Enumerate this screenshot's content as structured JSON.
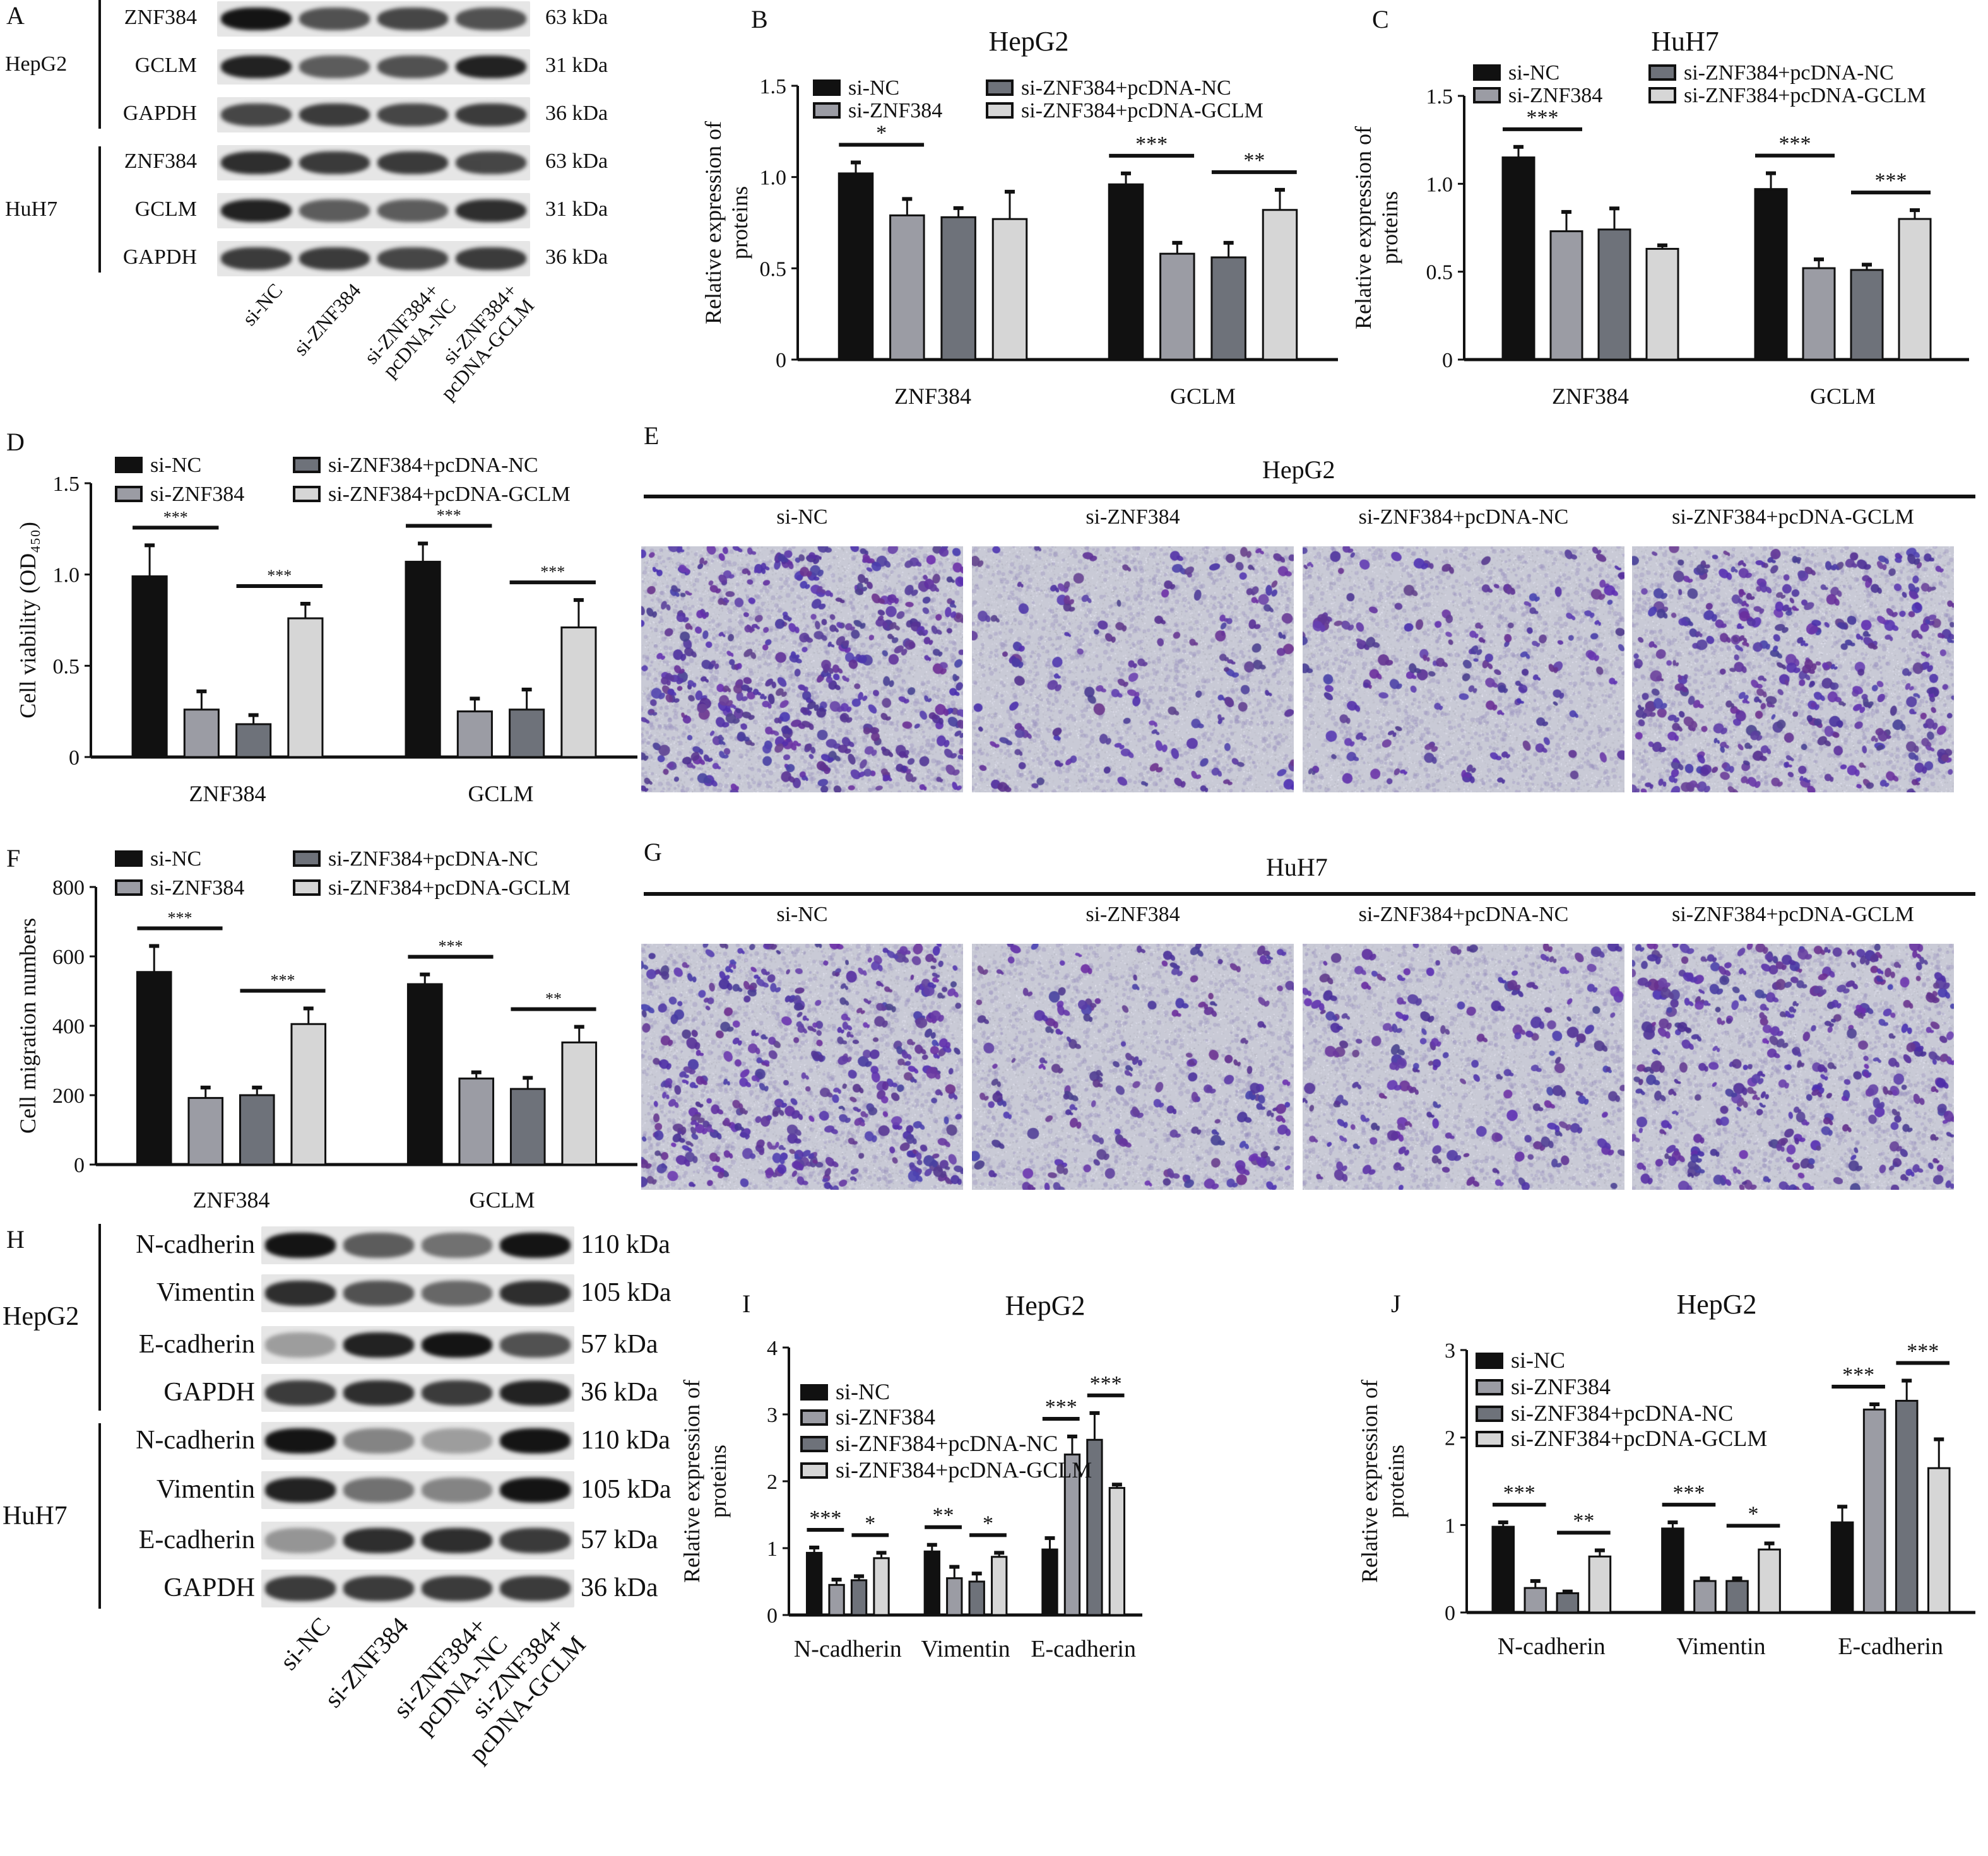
{
  "groups": [
    "si-NC",
    "si-ZNF384",
    "si-ZNF384+pcDNA-NC",
    "si-ZNF384+pcDNA-GCLM"
  ],
  "colors": {
    "si-NC": "#111111",
    "si-ZNF384": "#9b9ca4",
    "si-ZNF384+pcDNA-NC": "#6e727a",
    "si-ZNF384+pcDNA-GCLM": "#d6d6d6"
  },
  "panel_A": {
    "letter": "A",
    "cell_lines": [
      "HepG2",
      "HuH7"
    ],
    "rows": [
      {
        "protein": "ZNF384",
        "kda": "63 kDa"
      },
      {
        "protein": "GCLM",
        "kda": "31 kDa"
      },
      {
        "protein": "GAPDH",
        "kda": "36 kDa"
      },
      {
        "protein": "ZNF384",
        "kda": "63 kDa"
      },
      {
        "protein": "GCLM",
        "kda": "31 kDa"
      },
      {
        "protein": "GAPDH",
        "kda": "36 kDa"
      }
    ],
    "lanes": [
      [
        "si-NC",
        ""
      ],
      [
        "si-ZNF384",
        ""
      ],
      [
        "si-ZNF384+",
        "pcDNA-NC"
      ],
      [
        "si-ZNF384+",
        "pcDNA-GCLM"
      ]
    ]
  },
  "panel_E": {
    "letter": "E",
    "title": "HepG2",
    "labels": [
      "si-NC",
      "si-ZNF384",
      "si-ZNF384+pcDNA-NC",
      "si-ZNF384+pcDNA-GCLM"
    ]
  },
  "panel_G": {
    "letter": "G",
    "title": "HuH7",
    "labels": [
      "si-NC",
      "si-ZNF384",
      "si-ZNF384+pcDNA-NC",
      "si-ZNF384+pcDNA-GCLM"
    ]
  },
  "panel_H": {
    "letter": "H",
    "cell_lines": [
      "HepG2",
      "HuH7"
    ],
    "rows": [
      {
        "protein": "N-cadherin",
        "kda": "110 kDa"
      },
      {
        "protein": "Vimentin",
        "kda": "105 kDa"
      },
      {
        "protein": "E-cadherin",
        "kda": "57 kDa"
      },
      {
        "protein": "GAPDH",
        "kda": "36 kDa"
      },
      {
        "protein": "N-cadherin",
        "kda": "110 kDa"
      },
      {
        "protein": "Vimentin",
        "kda": "105 kDa"
      },
      {
        "protein": "E-cadherin",
        "kda": "57 kDa"
      },
      {
        "protein": "GAPDH",
        "kda": "36 kDa"
      }
    ],
    "lanes": [
      [
        "si-NC",
        ""
      ],
      [
        "si-ZNF384",
        ""
      ],
      [
        "si-ZNF384+",
        "pcDNA-NC"
      ],
      [
        "si-ZNF384+",
        "pcDNA-GCLM"
      ]
    ]
  },
  "chart_data": [
    {
      "panel": "B",
      "type": "bar",
      "title": "HepG2",
      "ylabel": [
        "Relative expression of",
        "proteins"
      ],
      "ylim": [
        0,
        1.5
      ],
      "yticks": [
        0,
        0.5,
        1.0,
        1.5
      ],
      "ytick_labels": [
        "0",
        "0.5",
        "1.0",
        "1.5"
      ],
      "categories": [
        "ZNF384",
        "GCLM"
      ],
      "series": [
        {
          "name": "si-NC",
          "values": [
            1.02,
            0.96
          ],
          "errors": [
            0.06,
            0.06
          ]
        },
        {
          "name": "si-ZNF384",
          "values": [
            0.79,
            0.58
          ],
          "errors": [
            0.09,
            0.06
          ]
        },
        {
          "name": "si-ZNF384+pcDNA-NC",
          "values": [
            0.78,
            0.56
          ],
          "errors": [
            0.05,
            0.08
          ]
        },
        {
          "name": "si-ZNF384+pcDNA-GCLM",
          "values": [
            0.77,
            0.82
          ],
          "errors": [
            0.15,
            0.11
          ]
        }
      ],
      "significance": [
        {
          "category": 0,
          "pair": [
            0,
            1
          ],
          "label": "*"
        },
        {
          "category": 1,
          "pair": [
            0,
            1
          ],
          "label": "***"
        },
        {
          "category": 1,
          "pair": [
            2,
            3
          ],
          "label": "**"
        }
      ],
      "legend": "top"
    },
    {
      "panel": "C",
      "type": "bar",
      "title": "HuH7",
      "ylabel": [
        "Relative expression of",
        "proteins"
      ],
      "ylim": [
        0,
        1.5
      ],
      "yticks": [
        0,
        0.5,
        1.0,
        1.5
      ],
      "ytick_labels": [
        "0",
        "0.5",
        "1.0",
        "1.5"
      ],
      "categories": [
        "ZNF384",
        "GCLM"
      ],
      "series": [
        {
          "name": "si-NC",
          "values": [
            1.15,
            0.97
          ],
          "errors": [
            0.06,
            0.09
          ]
        },
        {
          "name": "si-ZNF384",
          "values": [
            0.73,
            0.52
          ],
          "errors": [
            0.11,
            0.05
          ]
        },
        {
          "name": "si-ZNF384+pcDNA-NC",
          "values": [
            0.74,
            0.51
          ],
          "errors": [
            0.12,
            0.03
          ]
        },
        {
          "name": "si-ZNF384+pcDNA-GCLM",
          "values": [
            0.63,
            0.8
          ],
          "errors": [
            0.02,
            0.05
          ]
        }
      ],
      "significance": [
        {
          "category": 0,
          "pair": [
            0,
            1
          ],
          "label": "***"
        },
        {
          "category": 1,
          "pair": [
            0,
            1
          ],
          "label": "***"
        },
        {
          "category": 1,
          "pair": [
            2,
            3
          ],
          "label": "***"
        }
      ],
      "legend": "top"
    },
    {
      "panel": "D",
      "type": "bar",
      "title": "",
      "ylabel": [
        "Cell viability (OD₄₅₀)"
      ],
      "ylim": [
        0,
        1.5
      ],
      "yticks": [
        0,
        0.5,
        1.0,
        1.5
      ],
      "ytick_labels": [
        "0",
        "0.5",
        "1.0",
        "1.5"
      ],
      "categories": [
        "ZNF384",
        "GCLM"
      ],
      "series": [
        {
          "name": "si-NC",
          "values": [
            0.99,
            1.07
          ],
          "errors": [
            0.17,
            0.1
          ]
        },
        {
          "name": "si-ZNF384",
          "values": [
            0.26,
            0.25
          ],
          "errors": [
            0.1,
            0.07
          ]
        },
        {
          "name": "si-ZNF384+pcDNA-NC",
          "values": [
            0.18,
            0.26
          ],
          "errors": [
            0.05,
            0.11
          ]
        },
        {
          "name": "si-ZNF384+pcDNA-GCLM",
          "values": [
            0.76,
            0.71
          ],
          "errors": [
            0.08,
            0.15
          ]
        }
      ],
      "significance": [
        {
          "category": 0,
          "pair": [
            0,
            1
          ],
          "label": "***"
        },
        {
          "category": 0,
          "pair": [
            2,
            3
          ],
          "label": "***"
        },
        {
          "category": 1,
          "pair": [
            0,
            1
          ],
          "label": "***"
        },
        {
          "category": 1,
          "pair": [
            2,
            3
          ],
          "label": "***"
        }
      ],
      "legend": "top"
    },
    {
      "panel": "F",
      "type": "bar",
      "title": "",
      "ylabel": [
        "Cell migration numbers"
      ],
      "ylim": [
        0,
        800
      ],
      "yticks": [
        0,
        200,
        400,
        600,
        800
      ],
      "ytick_labels": [
        "0",
        "200",
        "400",
        "600",
        "800"
      ],
      "categories": [
        "ZNF384",
        "GCLM"
      ],
      "series": [
        {
          "name": "si-NC",
          "values": [
            555,
            520
          ],
          "errors": [
            75,
            28
          ]
        },
        {
          "name": "si-ZNF384",
          "values": [
            192,
            248
          ],
          "errors": [
            30,
            18
          ]
        },
        {
          "name": "si-ZNF384+pcDNA-NC",
          "values": [
            200,
            218
          ],
          "errors": [
            22,
            32
          ]
        },
        {
          "name": "si-ZNF384+pcDNA-GCLM",
          "values": [
            405,
            352
          ],
          "errors": [
            45,
            45
          ]
        }
      ],
      "significance": [
        {
          "category": 0,
          "pair": [
            0,
            1
          ],
          "label": "***"
        },
        {
          "category": 0,
          "pair": [
            2,
            3
          ],
          "label": "***"
        },
        {
          "category": 1,
          "pair": [
            0,
            1
          ],
          "label": "***"
        },
        {
          "category": 1,
          "pair": [
            2,
            3
          ],
          "label": "**"
        }
      ],
      "legend": "top"
    },
    {
      "panel": "I",
      "type": "bar",
      "title": "HepG2",
      "ylabel": [
        "Relative expression of",
        "proteins"
      ],
      "ylim": [
        0,
        4
      ],
      "yticks": [
        0,
        1,
        2,
        3,
        4
      ],
      "ytick_labels": [
        "0",
        "1",
        "2",
        "3",
        "4"
      ],
      "categories": [
        "N-cadherin",
        "Vimentin",
        "E-cadherin"
      ],
      "series": [
        {
          "name": "si-NC",
          "values": [
            0.93,
            0.95,
            0.98
          ],
          "errors": [
            0.08,
            0.1,
            0.17
          ]
        },
        {
          "name": "si-ZNF384",
          "values": [
            0.45,
            0.55,
            2.4
          ],
          "errors": [
            0.08,
            0.17,
            0.27
          ]
        },
        {
          "name": "si-ZNF384+pcDNA-NC",
          "values": [
            0.52,
            0.5,
            2.62
          ],
          "errors": [
            0.06,
            0.12,
            0.4
          ]
        },
        {
          "name": "si-ZNF384+pcDNA-GCLM",
          "values": [
            0.85,
            0.87,
            1.9
          ],
          "errors": [
            0.08,
            0.06,
            0.05
          ]
        }
      ],
      "significance": [
        {
          "category": 0,
          "pair": [
            0,
            1
          ],
          "label": "***"
        },
        {
          "category": 0,
          "pair": [
            2,
            3
          ],
          "label": "*"
        },
        {
          "category": 1,
          "pair": [
            0,
            1
          ],
          "label": "**"
        },
        {
          "category": 1,
          "pair": [
            2,
            3
          ],
          "label": "*"
        },
        {
          "category": 2,
          "pair": [
            0,
            1
          ],
          "label": "***"
        },
        {
          "category": 2,
          "pair": [
            2,
            3
          ],
          "label": "***"
        }
      ],
      "legend": "left"
    },
    {
      "panel": "J",
      "type": "bar",
      "title": "HepG2",
      "ylabel": [
        "Relative expression of",
        "proteins"
      ],
      "ylim": [
        0,
        3
      ],
      "yticks": [
        0,
        1,
        2,
        3
      ],
      "ytick_labels": [
        "0",
        "1",
        "2",
        "3"
      ],
      "categories": [
        "N-cadherin",
        "Vimentin",
        "E-cadherin"
      ],
      "series": [
        {
          "name": "si-NC",
          "values": [
            0.98,
            0.96,
            1.03
          ],
          "errors": [
            0.05,
            0.07,
            0.18
          ]
        },
        {
          "name": "si-ZNF384",
          "values": [
            0.28,
            0.36,
            2.32
          ],
          "errors": [
            0.08,
            0.03,
            0.06
          ]
        },
        {
          "name": "si-ZNF384+pcDNA-NC",
          "values": [
            0.22,
            0.36,
            2.42
          ],
          "errors": [
            0.02,
            0.03,
            0.23
          ]
        },
        {
          "name": "si-ZNF384+pcDNA-GCLM",
          "values": [
            0.64,
            0.72,
            1.65
          ],
          "errors": [
            0.07,
            0.07,
            0.33
          ]
        }
      ],
      "significance": [
        {
          "category": 0,
          "pair": [
            0,
            1
          ],
          "label": "***"
        },
        {
          "category": 0,
          "pair": [
            2,
            3
          ],
          "label": "**"
        },
        {
          "category": 1,
          "pair": [
            0,
            1
          ],
          "label": "***"
        },
        {
          "category": 1,
          "pair": [
            2,
            3
          ],
          "label": "*"
        },
        {
          "category": 2,
          "pair": [
            0,
            1
          ],
          "label": "***"
        },
        {
          "category": 2,
          "pair": [
            2,
            3
          ],
          "label": "***"
        }
      ],
      "legend": "left"
    }
  ]
}
